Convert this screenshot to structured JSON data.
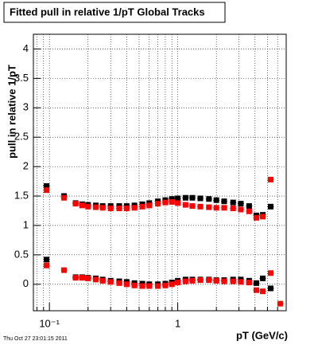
{
  "chart_data": {
    "type": "scatter",
    "title": "Fitted pull in relative 1/pT  Global Tracks",
    "y_label": "pull in relative 1/pT",
    "x_label": "pT (GeV/c)",
    "footer": "Thu Oct 27 23:01:15 2011",
    "log_x": true,
    "grid": true,
    "xlim": [
      0.075,
      7
    ],
    "ylim": [
      -0.45,
      4.25
    ],
    "xticks": [
      {
        "value": 0.1,
        "label": "10⁻¹"
      },
      1
    ],
    "xgrid": [
      0.08,
      0.09,
      0.2,
      0.3,
      0.4,
      0.5,
      0.6,
      0.7,
      0.8,
      0.9,
      2,
      3,
      4,
      5,
      6
    ],
    "yticks": [
      0,
      0.5,
      1,
      1.5,
      2,
      2.5,
      3,
      3.5,
      4
    ],
    "x": [
      0.095,
      0.13,
      0.16,
      0.18,
      0.2,
      0.23,
      0.26,
      0.3,
      0.35,
      0.4,
      0.46,
      0.53,
      0.6,
      0.7,
      0.8,
      0.9,
      1.0,
      1.15,
      1.3,
      1.5,
      1.75,
      2.0,
      2.3,
      2.7,
      3.1,
      3.6,
      4.1,
      4.6,
      5.3,
      6.3
    ],
    "series": [
      {
        "color": "#000000",
        "values": [
          1.67,
          1.5,
          1.38,
          1.36,
          1.35,
          1.34,
          1.33,
          1.33,
          1.33,
          1.33,
          1.34,
          1.36,
          1.38,
          1.41,
          1.43,
          1.45,
          1.46,
          1.47,
          1.47,
          1.46,
          1.45,
          1.43,
          1.41,
          1.39,
          1.37,
          1.33,
          1.17,
          1.18,
          1.32,
          null
        ]
      },
      {
        "color": "#ff0000",
        "values": [
          1.6,
          1.47,
          1.37,
          1.34,
          1.32,
          1.31,
          1.3,
          1.29,
          1.29,
          1.29,
          1.3,
          1.32,
          1.34,
          1.37,
          1.39,
          1.4,
          1.38,
          1.35,
          1.33,
          1.32,
          1.31,
          1.3,
          1.3,
          1.29,
          1.27,
          1.24,
          1.13,
          1.15,
          1.78,
          null
        ]
      },
      {
        "color": "#000000",
        "values": [
          0.42,
          null,
          0.12,
          0.12,
          0.11,
          0.1,
          0.08,
          0.06,
          0.05,
          0.04,
          0.02,
          0.01,
          0.0,
          0.0,
          0.01,
          0.03,
          0.06,
          0.08,
          0.08,
          0.08,
          0.08,
          0.07,
          0.07,
          0.08,
          0.08,
          0.06,
          0.02,
          0.1,
          -0.07,
          null
        ]
      },
      {
        "color": "#ff0000",
        "values": [
          0.32,
          0.24,
          0.11,
          0.11,
          0.1,
          0.08,
          0.06,
          0.04,
          0.02,
          0.0,
          -0.02,
          -0.03,
          -0.03,
          -0.03,
          -0.02,
          0.0,
          0.03,
          0.05,
          0.06,
          0.07,
          0.07,
          0.06,
          0.05,
          0.05,
          0.04,
          0.03,
          -0.1,
          -0.12,
          0.19,
          -0.33
        ]
      }
    ]
  }
}
